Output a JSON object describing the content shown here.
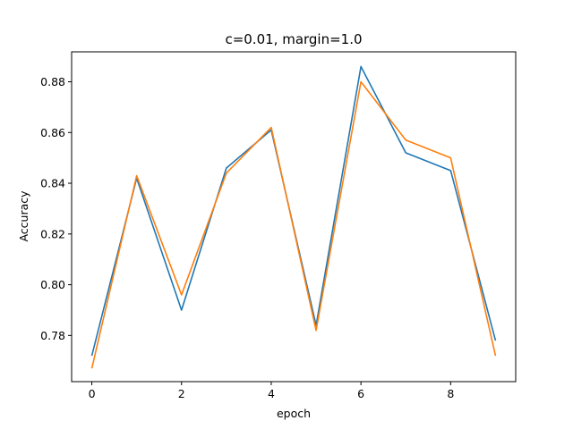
{
  "chart_data": {
    "type": "line",
    "title": "c=0.01, margin=1.0",
    "xlabel": "epoch",
    "ylabel": "Accuracy",
    "x": [
      0,
      1,
      2,
      3,
      4,
      5,
      6,
      7,
      8,
      9
    ],
    "xlim": [
      -0.45,
      9.45
    ],
    "ylim": [
      0.7618,
      0.8918
    ],
    "xticks": [
      0,
      2,
      4,
      6,
      8
    ],
    "yticks": [
      0.78,
      0.8,
      0.82,
      0.84,
      0.86,
      0.88
    ],
    "xtick_labels": [
      "0",
      "2",
      "4",
      "6",
      "8"
    ],
    "ytick_labels": [
      "0.78",
      "0.80",
      "0.82",
      "0.84",
      "0.86",
      "0.88"
    ],
    "grid": false,
    "legend": false,
    "series": [
      {
        "color": "#1f77b4",
        "values": [
          0.772,
          0.842,
          0.79,
          0.846,
          0.861,
          0.784,
          0.886,
          0.852,
          0.845,
          0.778
        ]
      },
      {
        "color": "#ff7f0e",
        "values": [
          0.767,
          0.843,
          0.796,
          0.844,
          0.862,
          0.782,
          0.88,
          0.857,
          0.85,
          0.772
        ]
      }
    ]
  }
}
